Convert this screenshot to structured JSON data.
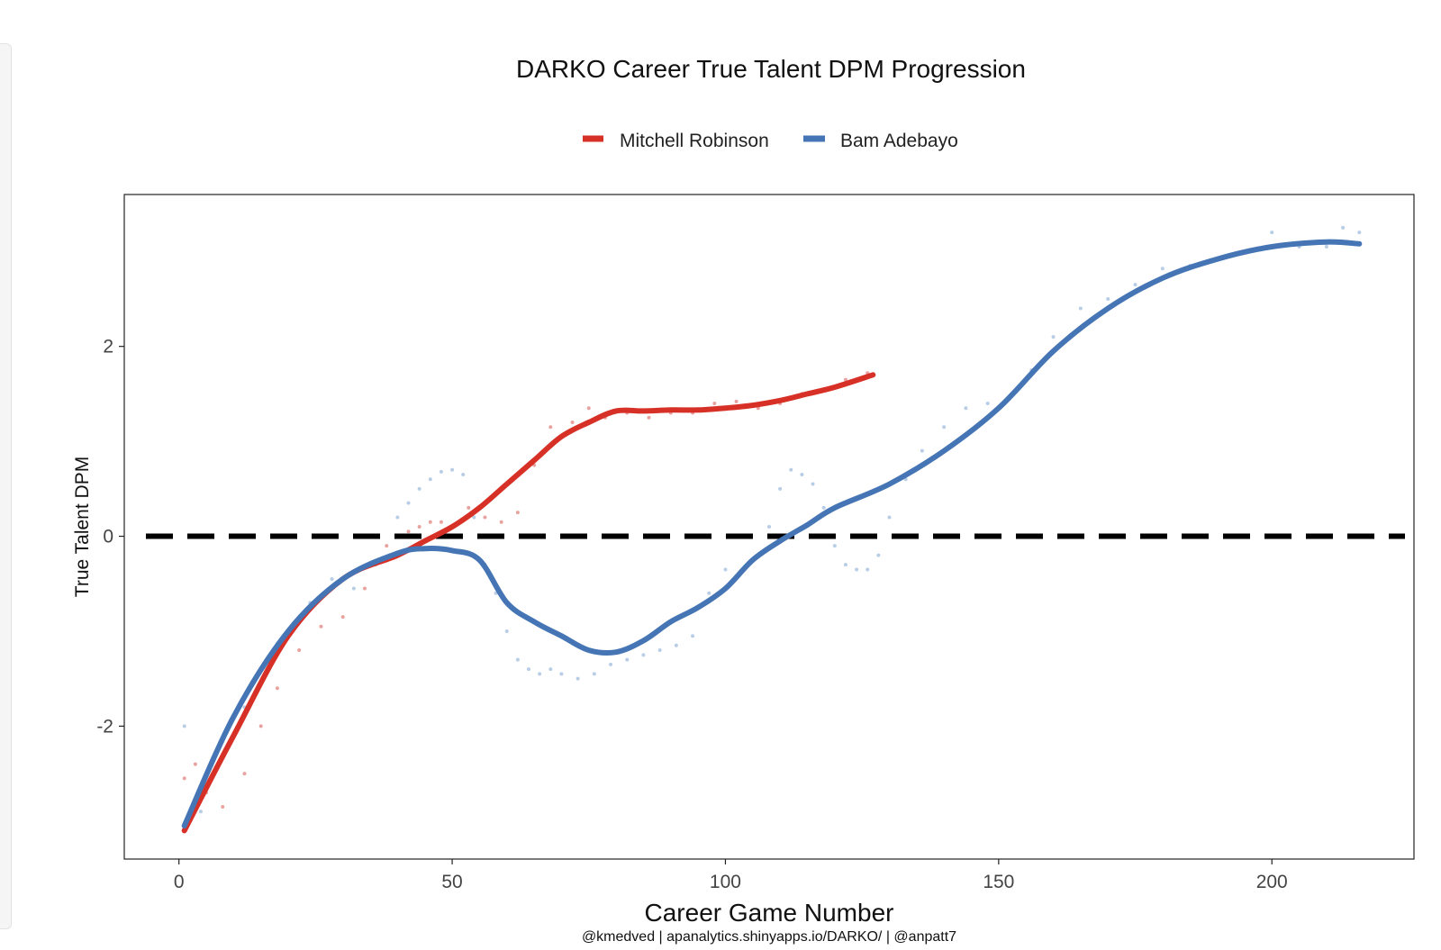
{
  "chart_data": {
    "type": "line",
    "title": "DARKO Career True Talent DPM Progression",
    "xlabel": "Career Game Number",
    "ylabel": "True Talent DPM",
    "caption": "@kmedved | apanalytics.shinyapps.io/DARKO/ | @anpatt7",
    "xlim": [
      -10,
      226
    ],
    "ylim": [
      -3.4,
      3.6
    ],
    "x_ticks": [
      0,
      50,
      100,
      150,
      200
    ],
    "y_ticks": [
      -2,
      0,
      2
    ],
    "x_tick_labels": [
      "0",
      "50",
      "100",
      "150",
      "200"
    ],
    "y_tick_labels": [
      "-2",
      "0",
      "2"
    ],
    "reference_line": {
      "y": 0,
      "style": "dashed"
    },
    "legend_position": "top",
    "series": [
      {
        "name": "Mitchell Robinson",
        "color": "#d73027",
        "x": [
          1,
          10,
          20,
          30,
          40,
          45,
          50,
          55,
          60,
          65,
          70,
          75,
          80,
          85,
          90,
          95,
          100,
          105,
          110,
          115,
          120,
          127
        ],
        "values": [
          -3.1,
          -2.1,
          -1.05,
          -0.45,
          -0.2,
          -0.05,
          0.1,
          0.3,
          0.55,
          0.8,
          1.05,
          1.2,
          1.32,
          1.32,
          1.33,
          1.33,
          1.35,
          1.38,
          1.43,
          1.5,
          1.57,
          1.7
        ]
      },
      {
        "name": "Bam Adebayo",
        "color": "#4575b4",
        "x": [
          1,
          10,
          20,
          30,
          40,
          45,
          50,
          55,
          60,
          65,
          70,
          75,
          80,
          85,
          90,
          95,
          100,
          105,
          110,
          115,
          120,
          130,
          140,
          150,
          160,
          170,
          180,
          190,
          200,
          210,
          216
        ],
        "values": [
          -3.05,
          -1.9,
          -1.0,
          -0.45,
          -0.18,
          -0.13,
          -0.15,
          -0.25,
          -0.7,
          -0.9,
          -1.05,
          -1.2,
          -1.22,
          -1.1,
          -0.9,
          -0.75,
          -0.55,
          -0.25,
          -0.05,
          0.12,
          0.3,
          0.55,
          0.9,
          1.35,
          1.95,
          2.4,
          2.72,
          2.92,
          3.05,
          3.1,
          3.08
        ]
      }
    ],
    "raw_points": [
      {
        "name": "Mitchell Robinson",
        "color": "#e8a3a0",
        "x": [
          1,
          3,
          5,
          8,
          12,
          15,
          18,
          22,
          26,
          30,
          34,
          38,
          42,
          44,
          46,
          48,
          50,
          53,
          56,
          59,
          62,
          65,
          68,
          72,
          75,
          78,
          82,
          86,
          90,
          94,
          98,
          102,
          106,
          110,
          114,
          118,
          122,
          126
        ],
        "values": [
          -2.55,
          -2.4,
          -2.7,
          -2.85,
          -2.5,
          -2.0,
          -1.6,
          -1.2,
          -0.95,
          -0.85,
          -0.55,
          -0.1,
          0.05,
          0.1,
          0.15,
          0.15,
          0.1,
          0.3,
          0.2,
          0.15,
          0.25,
          0.75,
          1.15,
          1.2,
          1.35,
          1.25,
          1.3,
          1.25,
          1.3,
          1.3,
          1.4,
          1.42,
          1.35,
          1.4,
          1.5,
          1.55,
          1.65,
          1.72
        ]
      },
      {
        "name": "Bam Adebayo",
        "color": "#b8cde6",
        "x": [
          1,
          4,
          8,
          12,
          16,
          20,
          24,
          28,
          32,
          36,
          40,
          42,
          44,
          46,
          48,
          50,
          52,
          54,
          56,
          58,
          60,
          62,
          64,
          66,
          68,
          70,
          73,
          76,
          79,
          82,
          85,
          88,
          91,
          94,
          97,
          100,
          104,
          108,
          110,
          112,
          114,
          116,
          118,
          120,
          122,
          124,
          126,
          128,
          130,
          133,
          136,
          140,
          144,
          148,
          152,
          156,
          160,
          165,
          170,
          175,
          180,
          185,
          190,
          195,
          200,
          205,
          210,
          213,
          216
        ],
        "values": [
          -2.0,
          -2.9,
          -2.3,
          -1.8,
          -1.3,
          -1.0,
          -0.7,
          -0.45,
          -0.55,
          -0.3,
          0.2,
          0.35,
          0.5,
          0.6,
          0.68,
          0.7,
          0.65,
          0.2,
          -0.3,
          -0.6,
          -1.0,
          -1.3,
          -1.4,
          -1.45,
          -1.4,
          -1.45,
          -1.5,
          -1.45,
          -1.35,
          -1.3,
          -1.25,
          -1.2,
          -1.15,
          -1.05,
          -0.6,
          -0.35,
          -0.3,
          0.1,
          0.5,
          0.7,
          0.65,
          0.55,
          0.3,
          -0.1,
          -0.3,
          -0.35,
          -0.35,
          -0.2,
          0.2,
          0.6,
          0.9,
          1.15,
          1.35,
          1.4,
          1.45,
          1.75,
          2.1,
          2.4,
          2.5,
          2.65,
          2.82,
          2.85,
          2.92,
          3.0,
          3.2,
          3.05,
          3.05,
          3.25,
          3.2
        ]
      }
    ]
  }
}
